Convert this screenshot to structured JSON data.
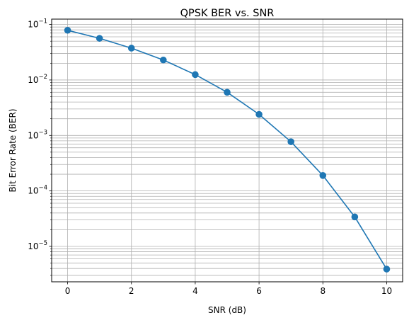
{
  "chart_data": {
    "type": "line",
    "title": "QPSK BER vs. SNR",
    "xlabel": "SNR (dB)",
    "ylabel": "Bit Error Rate (BER)",
    "yscale": "log",
    "xlim": [
      -0.5,
      10.5
    ],
    "ylim": [
      2.3e-06,
      0.125
    ],
    "grid": "major and minor",
    "x_ticks": [
      0,
      2,
      4,
      6,
      8,
      10
    ],
    "x_tick_labels": [
      "0",
      "2",
      "4",
      "6",
      "8",
      "10"
    ],
    "y_ticks": [
      1e-05,
      0.0001,
      0.001,
      0.01,
      0.1
    ],
    "y_tick_labels": [
      {
        "base": "10",
        "exp": "−5"
      },
      {
        "base": "10",
        "exp": "−4"
      },
      {
        "base": "10",
        "exp": "−3"
      },
      {
        "base": "10",
        "exp": "−2"
      },
      {
        "base": "10",
        "exp": "−1"
      }
    ],
    "series": [
      {
        "color": "#1f77b4",
        "marker": "circle",
        "x": [
          0,
          1,
          2,
          3,
          4,
          5,
          6,
          7,
          8,
          9,
          10
        ],
        "y": [
          0.0786,
          0.0563,
          0.0375,
          0.0229,
          0.0125,
          0.006,
          0.0024,
          0.00077,
          0.00019,
          3.4e-05,
          3.9e-06
        ]
      }
    ]
  }
}
